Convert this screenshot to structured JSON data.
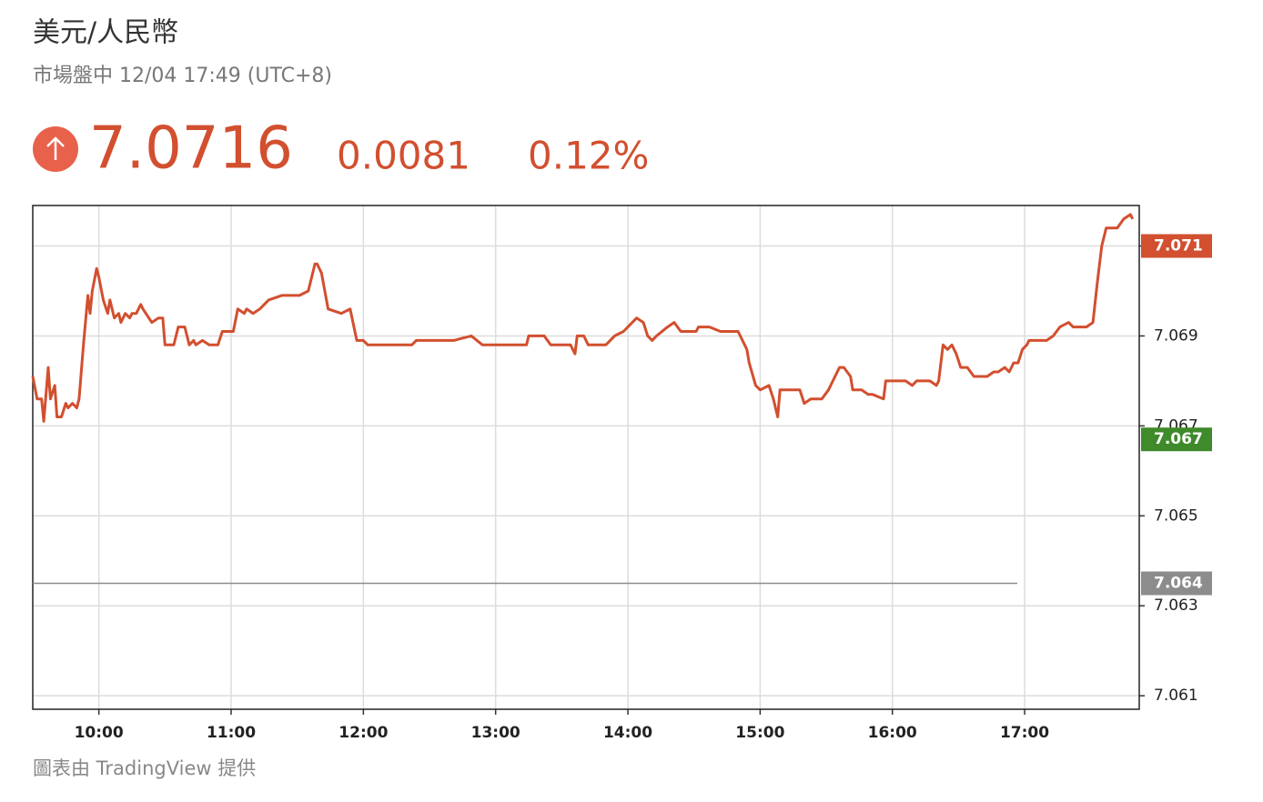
{
  "chart_data": {
    "type": "line",
    "title": "美元/人民幣",
    "subtitle": "市場盤中 12/04 17:49 (UTC+8)",
    "price": 7.0716,
    "change": 0.0081,
    "change_percent": "0.12%",
    "source": "圖表由 TradingView 提供",
    "x": [
      "09:30",
      "09:32",
      "09:34",
      "09:35",
      "09:37",
      "09:38",
      "09:40",
      "09:41",
      "09:43",
      "09:45",
      "09:46",
      "09:48",
      "09:50",
      "09:51",
      "09:53",
      "09:55",
      "09:56",
      "09:57",
      "09:59",
      "10:00",
      "10:02",
      "10:04",
      "10:05",
      "10:07",
      "10:09",
      "10:10",
      "10:12",
      "10:14",
      "10:15",
      "10:17",
      "10:19",
      "10:20",
      "10:24",
      "10:27",
      "10:29",
      "10:30",
      "10:34",
      "10:36",
      "10:39",
      "10:41",
      "10:43",
      "10:44",
      "10:47",
      "10:50",
      "10:54",
      "10:56",
      "11:01",
      "11:03",
      "11:06",
      "11:07",
      "11:10",
      "11:13",
      "11:17",
      "11:23",
      "11:27",
      "11:31",
      "11:35",
      "11:38",
      "11:39",
      "11:41",
      "11:44",
      "11:50",
      "11:54",
      "11:57",
      "12:00",
      "12:02",
      "12:05",
      "12:08",
      "12:12",
      "12:22",
      "12:24",
      "12:41",
      "12:49",
      "12:54",
      "13:14",
      "13:15",
      "13:22",
      "13:25",
      "13:34",
      "13:36",
      "13:37",
      "13:40",
      "13:42",
      "13:45",
      "13:50",
      "13:54",
      "13:58",
      "14:00",
      "14:04",
      "14:07",
      "14:09",
      "14:11",
      "14:13",
      "14:18",
      "14:21",
      "14:24",
      "14:31",
      "14:32",
      "14:37",
      "14:42",
      "14:50",
      "14:52",
      "14:54",
      "14:55",
      "14:58",
      "15:00",
      "15:04",
      "15:06",
      "15:08",
      "15:09",
      "15:12",
      "15:18",
      "15:20",
      "15:23",
      "15:28",
      "15:31",
      "15:33",
      "15:36",
      "15:38",
      "15:41",
      "15:42",
      "15:46",
      "15:49",
      "15:51",
      "15:56",
      "15:57",
      "16:06",
      "16:09",
      "16:11",
      "16:15",
      "16:17",
      "16:20",
      "16:21",
      "16:23",
      "16:25",
      "16:27",
      "16:29",
      "16:31",
      "16:34",
      "16:37",
      "16:43",
      "16:46",
      "16:48",
      "16:51",
      "16:53",
      "16:55",
      "16:57",
      "16:59",
      "17:01",
      "17:02",
      "17:06",
      "17:10",
      "17:13",
      "17:16",
      "17:20",
      "17:22",
      "17:28",
      "17:31",
      "17:33",
      "17:35",
      "17:37",
      "17:42",
      "17:45",
      "17:48",
      "17:49"
    ],
    "series": [
      {
        "name": "美元/人民幣",
        "color": "#d24f2f",
        "values": [
          7.0681,
          7.0676,
          7.0676,
          7.0671,
          7.0683,
          7.0676,
          7.0679,
          7.0672,
          7.0672,
          7.0675,
          7.0674,
          7.0675,
          7.0674,
          7.0676,
          7.0688,
          7.0699,
          7.0695,
          7.07,
          7.0705,
          7.0703,
          7.0698,
          7.0695,
          7.0698,
          7.0694,
          7.0695,
          7.0693,
          7.0695,
          7.0694,
          7.0695,
          7.0695,
          7.0697,
          7.0696,
          7.0693,
          7.0694,
          7.0694,
          7.0688,
          7.0688,
          7.0692,
          7.0692,
          7.0688,
          7.0689,
          7.0688,
          7.0689,
          7.0688,
          7.0688,
          7.0691,
          7.0691,
          7.0696,
          7.0695,
          7.0696,
          7.0695,
          7.0696,
          7.0698,
          7.0699,
          7.0699,
          7.0699,
          7.07,
          7.0706,
          7.0706,
          7.0704,
          7.0696,
          7.0695,
          7.0696,
          7.0689,
          7.0689,
          7.0688,
          7.0688,
          7.0688,
          7.0688,
          7.0688,
          7.0689,
          7.0689,
          7.069,
          7.0688,
          7.0688,
          7.069,
          7.069,
          7.0688,
          7.0688,
          7.0686,
          7.069,
          7.069,
          7.0688,
          7.0688,
          7.0688,
          7.069,
          7.0691,
          7.0692,
          7.0694,
          7.0693,
          7.069,
          7.0689,
          7.069,
          7.0692,
          7.0693,
          7.0691,
          7.0691,
          7.0692,
          7.0692,
          7.0691,
          7.0691,
          7.0689,
          7.0687,
          7.0684,
          7.0679,
          7.0678,
          7.0679,
          7.0676,
          7.0672,
          7.0678,
          7.0678,
          7.0678,
          7.0675,
          7.0676,
          7.0676,
          7.0678,
          7.068,
          7.0683,
          7.0683,
          7.0681,
          7.0678,
          7.0678,
          7.0677,
          7.0677,
          7.0676,
          7.068,
          7.068,
          7.0679,
          7.068,
          7.068,
          7.068,
          7.0679,
          7.068,
          7.0688,
          7.0687,
          7.0688,
          7.0686,
          7.0683,
          7.0683,
          7.0681,
          7.0681,
          7.0682,
          7.0682,
          7.0683,
          7.0682,
          7.0684,
          7.0684,
          7.0687,
          7.0688,
          7.0689,
          7.0689,
          7.0689,
          7.069,
          7.0692,
          7.0693,
          7.0692,
          7.0692,
          7.0693,
          7.0702,
          7.071,
          7.0714,
          7.0714,
          7.0716,
          7.0717,
          7.0716
        ]
      }
    ],
    "xlim": [
      "09:30",
      "17:52"
    ],
    "xticks": [
      "10:00",
      "11:00",
      "12:00",
      "13:00",
      "14:00",
      "15:00",
      "16:00",
      "17:00"
    ],
    "ylim": [
      7.0607,
      7.0719
    ],
    "yticks": [
      7.061,
      7.063,
      7.065,
      7.067,
      7.069,
      7.071
    ],
    "grid": true,
    "markers": [
      {
        "value": 7.071,
        "color": "#d24f2f"
      },
      {
        "value": 7.0667,
        "label": "7.067",
        "color": "#3f8a2b"
      },
      {
        "value": 7.0635,
        "label": "7.064",
        "color": "#8c8c8c"
      }
    ]
  }
}
